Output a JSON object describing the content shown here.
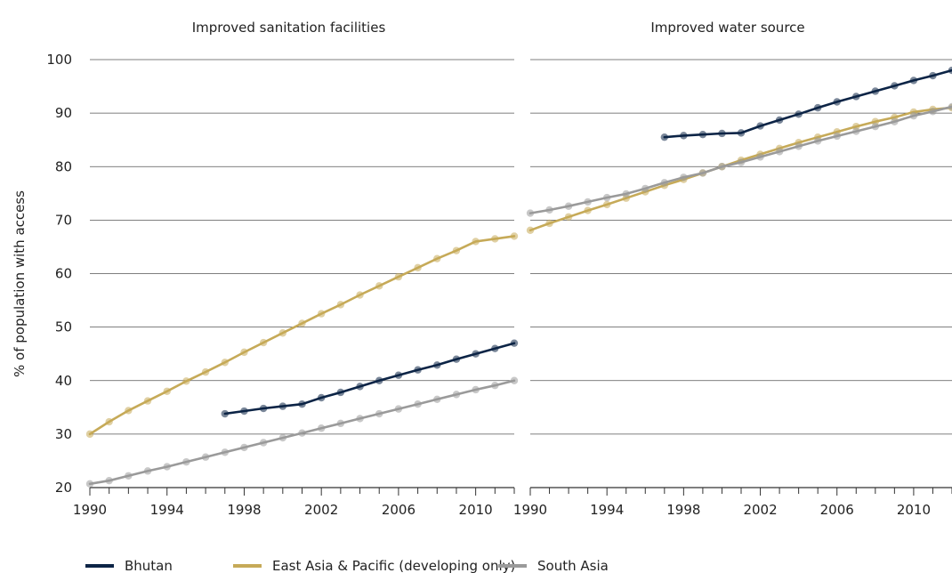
{
  "chart_data": {
    "type": "line",
    "ylabel": "% of population with access",
    "ylim": [
      20,
      100
    ],
    "yticks": [
      20,
      30,
      40,
      50,
      60,
      70,
      80,
      90,
      100
    ],
    "xlim": [
      1990,
      2012
    ],
    "xticks": [
      1990,
      1994,
      1998,
      2002,
      2006,
      2010
    ],
    "grid": "horizontal",
    "legend_placement": "bottom",
    "colors": {
      "Bhutan": "#0c2446",
      "East Asia & Pacific (developing only)": "#c6aa58",
      "South Asia": "#9a9a9a"
    },
    "panels": [
      {
        "title": "Improved sanitation facilities",
        "series": [
          {
            "name": "Bhutan",
            "x": [
              1997,
              1998,
              1999,
              2000,
              2001,
              2002,
              2003,
              2004,
              2005,
              2006,
              2007,
              2008,
              2009,
              2010,
              2011,
              2012
            ],
            "values": [
              33.8,
              34.3,
              34.8,
              35.2,
              35.6,
              36.8,
              37.8,
              38.9,
              40.0,
              41.0,
              42.0,
              42.9,
              44.0,
              45.0,
              46.0,
              47.0
            ]
          },
          {
            "name": "East Asia & Pacific (developing only)",
            "x": [
              1990,
              1991,
              1992,
              1993,
              1994,
              1995,
              1996,
              1997,
              1998,
              1999,
              2000,
              2001,
              2002,
              2003,
              2004,
              2005,
              2006,
              2007,
              2008,
              2009,
              2010,
              2011,
              2012
            ],
            "values": [
              30.0,
              32.3,
              34.4,
              36.2,
              38.0,
              39.9,
              41.6,
              43.4,
              45.3,
              47.1,
              48.9,
              50.7,
              52.5,
              54.2,
              56.0,
              57.7,
              59.4,
              61.1,
              62.8,
              64.3,
              66.0,
              66.5,
              67.0
            ]
          },
          {
            "name": "South Asia",
            "x": [
              1990,
              1991,
              1992,
              1993,
              1994,
              1995,
              1996,
              1997,
              1998,
              1999,
              2000,
              2001,
              2002,
              2003,
              2004,
              2005,
              2006,
              2007,
              2008,
              2009,
              2010,
              2011,
              2012
            ],
            "values": [
              20.7,
              21.3,
              22.2,
              23.1,
              23.9,
              24.8,
              25.7,
              26.6,
              27.5,
              28.4,
              29.3,
              30.2,
              31.1,
              32.0,
              32.9,
              33.8,
              34.7,
              35.6,
              36.5,
              37.4,
              38.3,
              39.1,
              40.0
            ]
          }
        ]
      },
      {
        "title": "Improved water source",
        "series": [
          {
            "name": "Bhutan",
            "x": [
              1997,
              1998,
              1999,
              2000,
              2001,
              2002,
              2003,
              2004,
              2005,
              2006,
              2007,
              2008,
              2009,
              2010,
              2011,
              2012
            ],
            "values": [
              85.5,
              85.8,
              86.0,
              86.2,
              86.3,
              87.6,
              88.7,
              89.8,
              91.0,
              92.1,
              93.1,
              94.1,
              95.1,
              96.1,
              97.0,
              98.0
            ]
          },
          {
            "name": "East Asia & Pacific (developing only)",
            "x": [
              1990,
              1991,
              1992,
              1993,
              1994,
              1995,
              1996,
              1997,
              1998,
              1999,
              2000,
              2001,
              2002,
              2003,
              2004,
              2005,
              2006,
              2007,
              2008,
              2009,
              2010,
              2011,
              2012
            ],
            "values": [
              68.1,
              69.4,
              70.6,
              71.8,
              72.9,
              74.1,
              75.3,
              76.5,
              77.6,
              78.8,
              80.0,
              81.2,
              82.3,
              83.4,
              84.5,
              85.5,
              86.5,
              87.5,
              88.4,
              89.2,
              90.2,
              90.7,
              91.0
            ]
          },
          {
            "name": "South Asia",
            "x": [
              1990,
              1991,
              1992,
              1993,
              1994,
              1995,
              1996,
              1997,
              1998,
              1999,
              2000,
              2001,
              2002,
              2003,
              2004,
              2005,
              2006,
              2007,
              2008,
              2009,
              2010,
              2011,
              2012
            ],
            "values": [
              71.3,
              71.9,
              72.6,
              73.4,
              74.2,
              74.9,
              75.9,
              77.0,
              78.0,
              78.8,
              80.0,
              80.8,
              81.8,
              82.8,
              83.8,
              84.8,
              85.7,
              86.6,
              87.5,
              88.4,
              89.5,
              90.3,
              91.2
            ]
          }
        ]
      }
    ]
  }
}
